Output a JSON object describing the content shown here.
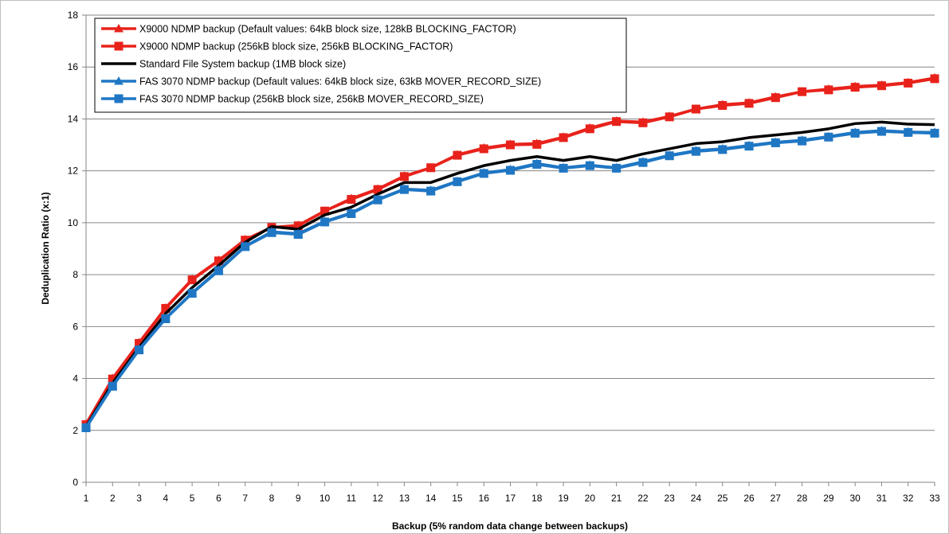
{
  "chart_data": {
    "type": "line",
    "title": "",
    "xlabel": "Backup (5% random data change between backups)",
    "ylabel": "Deduplication Ratio (x:1)",
    "ylim": [
      0,
      18
    ],
    "yticks": [
      0,
      2,
      4,
      6,
      8,
      10,
      12,
      14,
      16,
      18
    ],
    "x": [
      1,
      2,
      3,
      4,
      5,
      6,
      7,
      8,
      9,
      10,
      11,
      12,
      13,
      14,
      15,
      16,
      17,
      18,
      19,
      20,
      21,
      22,
      23,
      24,
      25,
      26,
      27,
      28,
      29,
      30,
      31,
      32,
      33
    ],
    "grid": "horizontal",
    "legend_position": "top-left",
    "series": [
      {
        "name": "X9000 NDMP backup (Default values: 64kB block size, 128kB BLOCKING_FACTOR)",
        "color": "#e8221b",
        "marker": "triangle",
        "values": [
          2.25,
          4.0,
          5.38,
          6.72,
          7.82,
          8.55,
          9.35,
          9.82,
          9.9,
          10.45,
          10.93,
          11.3,
          11.8,
          12.12,
          12.62,
          12.88,
          13.02,
          13.05,
          13.3,
          13.65,
          13.92,
          13.88,
          14.1,
          14.38,
          14.55,
          14.62,
          14.85,
          15.05,
          15.15,
          15.25,
          15.3,
          15.4,
          15.58
        ]
      },
      {
        "name": "X9000 NDMP backup (256kB block size, 256kB BLOCKING_FACTOR)",
        "color": "#e8221b",
        "marker": "square",
        "values": [
          2.22,
          3.98,
          5.35,
          6.7,
          7.8,
          8.53,
          9.33,
          9.82,
          9.88,
          10.45,
          10.9,
          11.28,
          11.78,
          12.12,
          12.6,
          12.85,
          13.0,
          13.02,
          13.28,
          13.62,
          13.9,
          13.85,
          14.08,
          14.38,
          14.52,
          14.6,
          14.82,
          15.05,
          15.12,
          15.22,
          15.28,
          15.38,
          15.55
        ]
      },
      {
        "name": "Standard File System backup (1MB block size)",
        "color": "#000000",
        "marker": "none",
        "values": [
          2.15,
          3.82,
          5.2,
          6.5,
          7.5,
          8.35,
          9.25,
          9.85,
          9.75,
          10.3,
          10.6,
          11.1,
          11.55,
          11.55,
          11.9,
          12.2,
          12.4,
          12.55,
          12.4,
          12.55,
          12.4,
          12.65,
          12.85,
          13.05,
          13.12,
          13.28,
          13.38,
          13.48,
          13.62,
          13.82,
          13.88,
          13.8,
          13.78
        ]
      },
      {
        "name": "FAS 3070 NDMP backup (Default values: 64kB block size, 63kB MOVER_RECORD_SIZE)",
        "color": "#1f77c4",
        "marker": "triangle",
        "values": [
          2.12,
          3.72,
          5.12,
          6.32,
          7.3,
          8.18,
          9.1,
          9.65,
          9.58,
          10.05,
          10.38,
          10.9,
          11.3,
          11.25,
          11.6,
          11.92,
          12.05,
          12.28,
          12.12,
          12.22,
          12.12,
          12.35,
          12.6,
          12.78,
          12.85,
          12.98,
          13.1,
          13.18,
          13.32,
          13.48,
          13.55,
          13.5,
          13.48
        ]
      },
      {
        "name": "FAS 3070 NDMP backup (256kB block size, 256kB MOVER_RECORD_SIZE)",
        "color": "#1f77c4",
        "marker": "square",
        "values": [
          2.1,
          3.7,
          5.1,
          6.3,
          7.28,
          8.15,
          9.08,
          9.62,
          9.55,
          10.03,
          10.35,
          10.88,
          11.28,
          11.22,
          11.58,
          11.9,
          12.02,
          12.25,
          12.1,
          12.2,
          12.1,
          12.32,
          12.58,
          12.75,
          12.82,
          12.95,
          13.08,
          13.15,
          13.3,
          13.45,
          13.52,
          13.48,
          13.45
        ]
      }
    ]
  }
}
